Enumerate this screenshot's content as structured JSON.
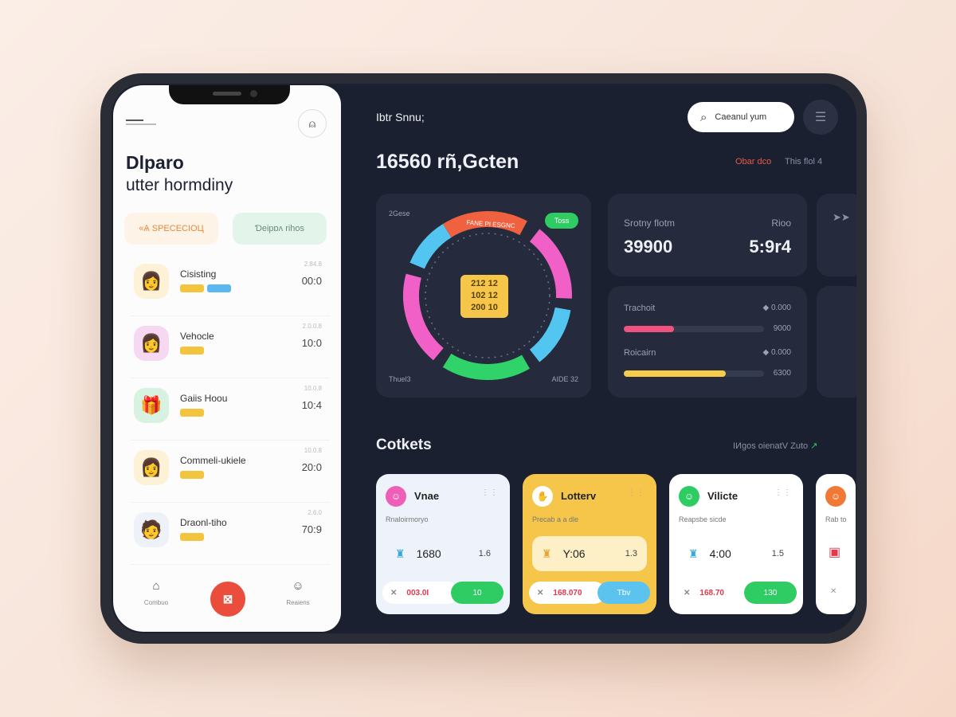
{
  "phone": {
    "title_line1": "Dlparo",
    "title_line2": "utter hormdiny",
    "pill_left": "«Ѧ ЅРЕСЕСІОЦ",
    "pill_right": "Ɗeipɒʌ rihos",
    "list": [
      {
        "name": "Cisisting",
        "small": "2.84.8",
        "value": "00:0",
        "avatar": "👩",
        "bg": "#fdf1d6"
      },
      {
        "name": "Vehocle",
        "small": "2.0.0.8",
        "value": "10:0",
        "avatar": "👩",
        "bg": "#f6d8f3"
      },
      {
        "name": "Gaiis Hoou",
        "small": "10.0.8",
        "value": "10:4",
        "avatar": "🎁",
        "bg": "#d8f2e2"
      },
      {
        "name": "Commeli-ukiele",
        "small": "10.0.8",
        "value": "20:0",
        "avatar": "👩",
        "bg": "#fdf1d6"
      },
      {
        "name": "Draonl-tiho",
        "small": "2.6.0",
        "value": "70:9",
        "avatar": "🧑",
        "bg": "#eef1f7"
      }
    ],
    "nav": [
      {
        "label": "Combuo",
        "icon": "home-icon"
      },
      {
        "label": "Reaiens",
        "icon": "smile-icon"
      }
    ]
  },
  "header": {
    "greeting": "Ibtr Snnu;",
    "search_placeholder": "Caeanul yum",
    "balance": "16560 rñ,Gcten",
    "link_red": "Obar dco",
    "link_gray": "This flol 4"
  },
  "donut_card": {
    "label_tl": "2Gese",
    "badge": "Toss",
    "arc_label": "FANE PI ESGNC",
    "center_lines": [
      "212 12",
      "102 12",
      "200 10"
    ],
    "label_bl": "Thuel3",
    "label_br": "AIDE 32"
  },
  "stat_card": {
    "label": "Srotny flotm",
    "label_right": "Rioo",
    "value": "39900",
    "value_right": "5:9r4"
  },
  "progress_card": {
    "items": [
      {
        "label": "Trachoit",
        "top": "0.000",
        "bottom": "9000",
        "fraction": 0.36,
        "color": "#f0527f"
      },
      {
        "label": "Roicairn",
        "top": "0.000",
        "bottom": "6300",
        "fraction": 0.73,
        "color": "#f6cc4a"
      }
    ]
  },
  "contests": {
    "title": "Cotkets",
    "view_all": "IИgos oienatV Zuto",
    "cards": [
      {
        "title": "Vnae",
        "sub": "Rnaloirmoryo",
        "amount": "1680",
        "ratio": "1.6",
        "price": "003.0І",
        "btn": "10",
        "icon_color": "#ee5fb8",
        "btn_color": "#2fcb63",
        "bg": "#eef3fb",
        "mid_bg": "#eef3fb"
      },
      {
        "title": "Lotterv",
        "sub": "Precab a a dle",
        "amount": "Y:06",
        "ratio": "1.3",
        "price": "168.070",
        "btn": "Tbv",
        "icon_color": "#ffffff",
        "btn_color": "#5bc3ee",
        "bg": "#f6c64b",
        "mid_bg": "#fdefc6"
      },
      {
        "title": "Vilicte",
        "sub": "Reapsbe sicde",
        "amount": "4:00",
        "ratio": "1.5",
        "price": "168.70",
        "btn": "130",
        "icon_color": "#2fcb63",
        "btn_color": "#2fcb63",
        "bg": "#ffffff",
        "mid_bg": "#ffffff"
      },
      {
        "title": "",
        "sub": "Rab to",
        "icon_color": "#f07a35",
        "bg": "#ffffff"
      }
    ]
  },
  "colors": {
    "screen_bg": "#1b2030",
    "card_bg": "#252b3c",
    "accent_red": "#ea4d3c",
    "accent_green": "#2fcb63"
  }
}
